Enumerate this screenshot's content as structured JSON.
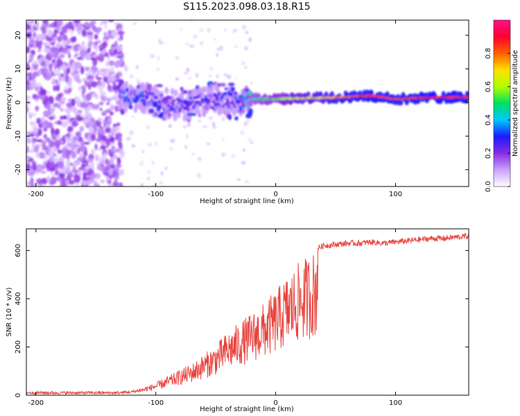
{
  "title": "S115.2023.098.03.18.R15",
  "colors": {
    "snr_line": "#e8403a",
    "spectro_bg": "#ffffff",
    "colorbar": [
      "#ffffff",
      "#c9a0ff",
      "#8a2be2",
      "#1a1aff",
      "#00c8ff",
      "#00e060",
      "#b0ff00",
      "#ffe000",
      "#ff6000",
      "#ff0030",
      "#ff1090"
    ]
  },
  "chart_data": [
    {
      "type": "heatmap",
      "xlabel": "Height of straight line (km)",
      "ylabel": "Frequency (Hz)",
      "xlim": [
        -208,
        161
      ],
      "ylim": [
        -25,
        24.5
      ],
      "xticks": [
        -200,
        -100,
        0,
        100
      ],
      "yticks": [
        -20,
        -10,
        0,
        10,
        20
      ],
      "colorbar": {
        "label": "Normalized spectral amplitude",
        "range": [
          0,
          1
        ],
        "ticks": [
          "0.0",
          "0.2",
          "0.4",
          "0.6",
          "0.8"
        ]
      },
      "ridge": [
        {
          "x": -130,
          "y": 2.0,
          "amp": 0.3
        },
        {
          "x": -110,
          "y": 1.5,
          "amp": 0.3
        },
        {
          "x": -95,
          "y": 0.0,
          "amp": 0.25
        },
        {
          "x": -80,
          "y": -1.0,
          "amp": 0.25
        },
        {
          "x": -60,
          "y": 0.5,
          "amp": 0.25
        },
        {
          "x": -45,
          "y": 1.0,
          "amp": 0.2
        },
        {
          "x": -30,
          "y": 0.0,
          "amp": 0.3
        },
        {
          "x": -20,
          "y": 1.0,
          "amp": 0.45
        },
        {
          "x": 0,
          "y": 1.0,
          "amp": 0.55
        },
        {
          "x": 20,
          "y": 1.2,
          "amp": 0.65
        },
        {
          "x": 50,
          "y": 1.5,
          "amp": 0.75
        },
        {
          "x": 80,
          "y": 2.0,
          "amp": 0.85
        },
        {
          "x": 100,
          "y": 1.0,
          "amp": 0.8
        },
        {
          "x": 130,
          "y": 1.5,
          "amp": 0.85
        },
        {
          "x": 161,
          "y": 1.5,
          "amp": 0.85
        }
      ]
    },
    {
      "type": "line",
      "xlabel": "Height of straight line (km)",
      "ylabel": "SNR (10 * v/v)",
      "xlim": [
        -208,
        161
      ],
      "ylim": [
        0,
        690
      ],
      "xticks": [
        -200,
        -100,
        0,
        100
      ],
      "yticks": [
        0,
        200,
        400,
        600
      ],
      "series": [
        {
          "x": [
            -208,
            -180,
            -150,
            -130,
            -120,
            -110,
            -100,
            -90,
            -80,
            -70,
            -60,
            -50,
            -40,
            -30,
            -20,
            -10,
            0,
            10,
            20,
            30,
            34,
            35,
            40,
            50,
            60,
            70,
            80,
            90,
            100,
            110,
            120,
            130,
            140,
            150,
            161
          ],
          "values": [
            10,
            10,
            10,
            10,
            15,
            25,
            40,
            60,
            80,
            100,
            130,
            160,
            200,
            230,
            260,
            290,
            330,
            380,
            420,
            450,
            460,
            610,
            620,
            625,
            630,
            630,
            635,
            630,
            635,
            640,
            645,
            650,
            650,
            655,
            660
          ]
        }
      ]
    }
  ]
}
